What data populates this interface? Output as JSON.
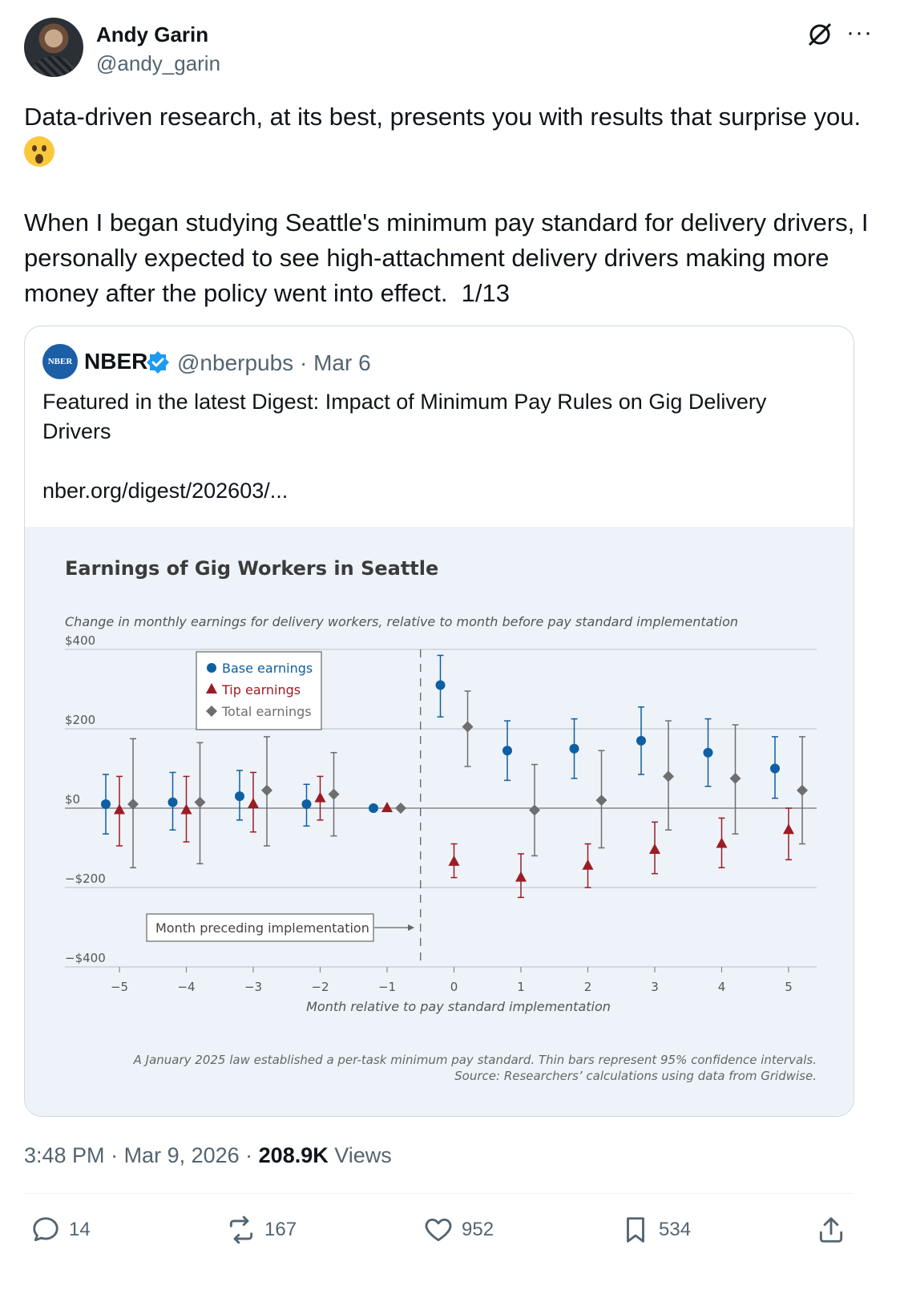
{
  "author": {
    "name": "Andy Garin",
    "handle": "@andy_garin"
  },
  "tweet": {
    "text_line1": "Data-driven research, at its best, presents you with results that surprise you.",
    "emoji": "astonished-face",
    "text_body": "When I began studying Seattle's minimum pay standard for delivery drivers, I personally expected to see high-attachment delivery drivers making more money after the policy went into effect.  1/13"
  },
  "quoted": {
    "avatar_label": "NBER",
    "name": "NBER",
    "meta": "@nberpubs · Mar 6",
    "text": "Featured in the latest Digest: Impact of Minimum Pay Rules on Gig Delivery Drivers",
    "link": "nber.org/digest/202603/..."
  },
  "chart_data": {
    "type": "scatter",
    "title": "Earnings of Gig Workers in Seattle",
    "subtitle": "Change in monthly earnings for delivery workers, relative to month before pay standard implementation",
    "xlabel": "Month relative to pay standard implementation",
    "ylim": [
      -400,
      400
    ],
    "yticks": [
      400,
      200,
      0,
      -200,
      -400
    ],
    "ytick_labels": [
      "$400",
      "$200",
      "$0",
      "−$200",
      "−$400"
    ],
    "x": [
      -5,
      -4,
      -3,
      -2,
      -1,
      0,
      1,
      2,
      3,
      4,
      5
    ],
    "xtick_labels": [
      "−5",
      "−4",
      "−3",
      "−2",
      "−1",
      "0",
      "1",
      "2",
      "3",
      "4",
      "5"
    ],
    "series": [
      {
        "name": "Base earnings",
        "marker": "circle",
        "color": "#0e5fa3",
        "values": [
          10,
          15,
          30,
          10,
          0,
          310,
          145,
          150,
          170,
          140,
          100
        ],
        "ci_low": [
          -65,
          -55,
          -30,
          -45,
          0,
          230,
          70,
          75,
          85,
          55,
          25
        ],
        "ci_high": [
          85,
          90,
          95,
          60,
          0,
          385,
          220,
          225,
          255,
          225,
          180
        ]
      },
      {
        "name": "Tip earnings",
        "marker": "triangle",
        "color": "#9c1c24",
        "values": [
          -5,
          -5,
          10,
          25,
          0,
          -135,
          -175,
          -145,
          -105,
          -90,
          -55
        ],
        "ci_low": [
          -95,
          -85,
          -60,
          -30,
          0,
          -175,
          -225,
          -200,
          -165,
          -150,
          -130
        ],
        "ci_high": [
          80,
          80,
          90,
          80,
          0,
          -90,
          -115,
          -90,
          -35,
          -25,
          0
        ]
      },
      {
        "name": "Total earnings",
        "marker": "diamond",
        "color": "#6e6e6e",
        "values": [
          10,
          15,
          45,
          35,
          0,
          205,
          -5,
          20,
          80,
          75,
          45
        ],
        "ci_low": [
          -150,
          -140,
          -95,
          -70,
          0,
          105,
          -120,
          -100,
          -55,
          -65,
          -90
        ],
        "ci_high": [
          175,
          165,
          180,
          140,
          0,
          295,
          110,
          145,
          220,
          210,
          180
        ]
      }
    ],
    "legend_placement": "top-left",
    "annotation": "Month preceding implementation",
    "footnote": "A January 2025 law established a per-task minimum pay standard. Thin bars represent 95% confidence intervals.",
    "source": "Source: Researchers’ calculations using data from Gridwise."
  },
  "footer": {
    "time": "3:48 PM",
    "date": "Mar 9, 2026",
    "views_count": "208.9K",
    "views_label": "Views"
  },
  "actions": {
    "replies": "14",
    "reposts": "167",
    "likes": "952",
    "bookmarks": "534"
  },
  "colors": {
    "base": "#0e5fa3",
    "tip": "#9c1c24",
    "total": "#6e6e6e",
    "chart_bg": "#eef3f9"
  }
}
